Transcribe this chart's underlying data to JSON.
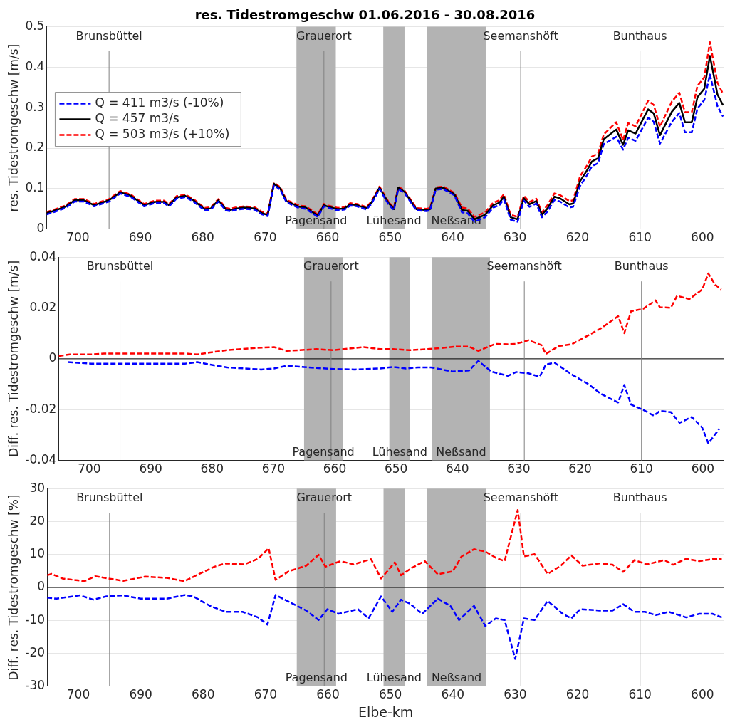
{
  "chart_data": [
    {
      "type": "line",
      "title": "res. Tidestromgeschw 01.06.2016 - 30.08.2016",
      "ylabel": "res. Tidestromgeschw [m/s]",
      "xlim": [
        705,
        596.5
      ],
      "xticks": [
        700,
        690,
        680,
        670,
        660,
        650,
        640,
        630,
        620,
        610,
        600
      ],
      "ylim": [
        0,
        0.5
      ],
      "yticks": [
        0,
        0.1,
        0.2,
        0.3,
        0.4,
        0.5
      ],
      "grid": "y",
      "legend": "top left",
      "x": [
        705,
        703.8,
        702,
        700.5,
        699,
        697.4,
        695,
        693.2,
        691.5,
        689.4,
        687.7,
        686.2,
        685.4,
        684.2,
        682.8,
        681.5,
        679.7,
        678.7,
        677.5,
        676.3,
        675.6,
        674.5,
        673.3,
        671.7,
        670.5,
        669.6,
        668.6,
        667.6,
        666.6,
        664.6,
        663.5,
        661.6,
        660.6,
        659.9,
        658.4,
        657.3,
        656.4,
        655.3,
        653.8,
        653,
        651.7,
        650.3,
        649.4,
        648.7,
        647.7,
        645.8,
        644.2,
        643.6,
        642.7,
        641.5,
        639.7,
        638.5,
        637.6,
        636.5,
        634.8,
        633.5,
        632.5,
        631.8,
        630.7,
        629.6,
        628.6,
        627.7,
        626.6,
        625.7,
        624.8,
        623.7,
        622.8,
        621.3,
        620.7,
        619.6,
        618.4,
        617.7,
        616.7,
        615.8,
        613.8,
        612.7,
        611.9,
        610.7,
        608.7,
        607.8,
        606.8,
        604.9,
        603.7,
        602.8,
        601.7,
        600.8,
        599.7,
        598.8,
        597.6,
        596.7
      ],
      "series": [
        {
          "name": "Q = 411 m3/s (-10%)",
          "color": "#0000ff",
          "line_style": "dashed",
          "values": [
            0.036,
            0.042,
            0.052,
            0.068,
            0.068,
            0.056,
            0.068,
            0.088,
            0.079,
            0.056,
            0.064,
            0.064,
            0.056,
            0.075,
            0.079,
            0.068,
            0.046,
            0.048,
            0.068,
            0.046,
            0.044,
            0.048,
            0.05,
            0.048,
            0.036,
            0.032,
            0.109,
            0.097,
            0.066,
            0.052,
            0.05,
            0.03,
            0.056,
            0.052,
            0.046,
            0.048,
            0.058,
            0.056,
            0.048,
            0.062,
            0.099,
            0.062,
            0.046,
            0.099,
            0.089,
            0.046,
            0.044,
            0.046,
            0.097,
            0.099,
            0.083,
            0.041,
            0.039,
            0.018,
            0.029,
            0.053,
            0.059,
            0.074,
            0.023,
            0.018,
            0.07,
            0.055,
            0.063,
            0.029,
            0.043,
            0.072,
            0.068,
            0.053,
            0.055,
            0.106,
            0.135,
            0.155,
            0.163,
            0.21,
            0.228,
            0.196,
            0.226,
            0.218,
            0.275,
            0.265,
            0.211,
            0.265,
            0.287,
            0.239,
            0.239,
            0.298,
            0.319,
            0.382,
            0.304,
            0.278
          ]
        },
        {
          "name": "Q = 457 m3/s",
          "color": "#000000",
          "line_style": "solid",
          "values": [
            0.039,
            0.045,
            0.055,
            0.071,
            0.071,
            0.059,
            0.071,
            0.091,
            0.082,
            0.059,
            0.067,
            0.067,
            0.059,
            0.078,
            0.082,
            0.071,
            0.049,
            0.051,
            0.071,
            0.049,
            0.047,
            0.051,
            0.053,
            0.051,
            0.039,
            0.035,
            0.112,
            0.1,
            0.069,
            0.055,
            0.053,
            0.033,
            0.059,
            0.055,
            0.049,
            0.051,
            0.061,
            0.059,
            0.051,
            0.065,
            0.102,
            0.065,
            0.049,
            0.102,
            0.092,
            0.049,
            0.047,
            0.049,
            0.1,
            0.102,
            0.086,
            0.047,
            0.045,
            0.024,
            0.035,
            0.059,
            0.065,
            0.08,
            0.029,
            0.024,
            0.076,
            0.061,
            0.069,
            0.035,
            0.051,
            0.08,
            0.076,
            0.061,
            0.063,
            0.118,
            0.147,
            0.167,
            0.175,
            0.222,
            0.246,
            0.208,
            0.244,
            0.236,
            0.296,
            0.286,
            0.232,
            0.29,
            0.312,
            0.264,
            0.264,
            0.326,
            0.347,
            0.428,
            0.333,
            0.306
          ]
        },
        {
          "name": "Q = 503 m3/s (+10%)",
          "color": "#ff0000",
          "line_style": "dashed",
          "values": [
            0.042,
            0.048,
            0.058,
            0.074,
            0.074,
            0.062,
            0.074,
            0.094,
            0.085,
            0.062,
            0.07,
            0.07,
            0.062,
            0.081,
            0.085,
            0.074,
            0.052,
            0.054,
            0.074,
            0.052,
            0.05,
            0.054,
            0.056,
            0.054,
            0.042,
            0.038,
            0.115,
            0.103,
            0.072,
            0.058,
            0.056,
            0.036,
            0.062,
            0.058,
            0.052,
            0.054,
            0.064,
            0.062,
            0.054,
            0.068,
            0.105,
            0.068,
            0.052,
            0.105,
            0.095,
            0.052,
            0.05,
            0.052,
            0.103,
            0.105,
            0.089,
            0.053,
            0.051,
            0.03,
            0.041,
            0.065,
            0.071,
            0.086,
            0.035,
            0.03,
            0.082,
            0.067,
            0.075,
            0.041,
            0.059,
            0.088,
            0.084,
            0.069,
            0.071,
            0.13,
            0.159,
            0.179,
            0.187,
            0.234,
            0.264,
            0.22,
            0.262,
            0.254,
            0.317,
            0.307,
            0.253,
            0.315,
            0.337,
            0.289,
            0.289,
            0.354,
            0.375,
            0.462,
            0.362,
            0.334
          ]
        }
      ],
      "ref_lines": [
        {
          "axis": "x",
          "value": 695,
          "label": "Brunsbüttel",
          "color": "#808080"
        },
        {
          "axis": "x",
          "value": 660.6,
          "label": "Grauerort",
          "color": "#808080"
        },
        {
          "axis": "x",
          "value": 629.1,
          "label": "Seemanshöft",
          "color": "#808080"
        },
        {
          "axis": "x",
          "value": 610,
          "label": "Bunthaus",
          "color": "#808080"
        }
      ],
      "bands": [
        {
          "axis": "x",
          "from": 665,
          "to": 658.7,
          "label": "Pagensand",
          "color": "#b3b3b3"
        },
        {
          "axis": "x",
          "from": 651.1,
          "to": 647.7,
          "label": "Lühesand",
          "color": "#b3b3b3"
        },
        {
          "axis": "x",
          "from": 644.1,
          "to": 634.7,
          "label": "Neßsand",
          "color": "#b3b3b3"
        }
      ]
    },
    {
      "type": "line",
      "ylabel": "Diff. res. Tidestromgeschw [m/s]",
      "xlim": [
        705,
        596.5
      ],
      "xticks": [
        700,
        690,
        680,
        670,
        660,
        650,
        640,
        630,
        620,
        610,
        600
      ],
      "ylim": [
        -0.04,
        0.04
      ],
      "yticks": [
        -0.04,
        -0.02,
        0,
        0.02,
        0.04
      ],
      "grid": "y",
      "series": [
        {
          "color": "#0000ff",
          "line_style": "dashed",
          "x": [
            703.5,
            699.7,
            694.8,
            684.4,
            682.4,
            680.3,
            677.5,
            672,
            669.9,
            667.8,
            663,
            660.2,
            656.7,
            652.6,
            650.5,
            648.4,
            646.4,
            644.3,
            640.8,
            638.1,
            636.6,
            634.5,
            631.8,
            630.4,
            628.4,
            626.6,
            625.6,
            624.2,
            621.4,
            618.7,
            616.6,
            613.8,
            612.8,
            611.7,
            609.7,
            608,
            607,
            605.2,
            603.8,
            601.8,
            600.1,
            599.1,
            597.3
          ],
          "values": [
            -0.0013,
            -0.0019,
            -0.0019,
            -0.0019,
            -0.0013,
            -0.0023,
            -0.0034,
            -0.0042,
            -0.0038,
            -0.0027,
            -0.0036,
            -0.004,
            -0.0042,
            -0.0038,
            -0.0032,
            -0.0038,
            -0.0034,
            -0.0034,
            -0.005,
            -0.0046,
            -0.0008,
            -0.005,
            -0.0067,
            -0.0052,
            -0.0057,
            -0.0071,
            -0.0023,
            -0.0015,
            -0.0061,
            -0.0099,
            -0.0138,
            -0.0172,
            -0.0103,
            -0.018,
            -0.0201,
            -0.0224,
            -0.0205,
            -0.021,
            -0.0252,
            -0.0229,
            -0.0271,
            -0.0333,
            -0.0275
          ]
        },
        {
          "color": "#ff0000",
          "line_style": "dashed",
          "x": [
            705,
            703.2,
            699.7,
            697.6,
            692.8,
            684.4,
            682.4,
            680.3,
            677.5,
            673.4,
            669.9,
            667.8,
            663,
            660.2,
            655.3,
            652.6,
            650.5,
            647.8,
            645,
            642.9,
            640.2,
            638.1,
            636.6,
            633.8,
            631.8,
            630.4,
            628.4,
            626.3,
            625.6,
            623.5,
            621.4,
            618.7,
            616.6,
            613.8,
            612.8,
            611.7,
            609.7,
            607.7,
            607,
            605.2,
            604.2,
            602.2,
            600.1,
            599.1,
            598,
            597
          ],
          "values": [
            0.0011,
            0.0017,
            0.0017,
            0.0021,
            0.0021,
            0.0021,
            0.0017,
            0.0025,
            0.0034,
            0.0042,
            0.0046,
            0.0031,
            0.0038,
            0.0034,
            0.0046,
            0.0038,
            0.0038,
            0.0034,
            0.0038,
            0.0042,
            0.0048,
            0.0048,
            0.0031,
            0.0059,
            0.0057,
            0.0059,
            0.0073,
            0.0054,
            0.0019,
            0.005,
            0.0057,
            0.0092,
            0.012,
            0.0168,
            0.0101,
            0.0187,
            0.0197,
            0.023,
            0.0203,
            0.0201,
            0.0248,
            0.0235,
            0.0273,
            0.0336,
            0.0292,
            0.0273
          ]
        }
      ],
      "ref_lines": [
        {
          "axis": "y",
          "value": 0,
          "label": null,
          "color": "#000000"
        },
        {
          "axis": "x",
          "value": 695,
          "label": "Brunsbüttel",
          "color": "#808080"
        },
        {
          "axis": "x",
          "value": 660.6,
          "label": "Grauerort",
          "color": "#808080"
        },
        {
          "axis": "x",
          "value": 629.1,
          "label": "Seemanshöft",
          "color": "#808080"
        },
        {
          "axis": "x",
          "value": 610,
          "label": "Bunthaus",
          "color": "#808080"
        }
      ],
      "bands": [
        {
          "axis": "x",
          "from": 665,
          "to": 658.7,
          "label": "Pagensand",
          "color": "#b3b3b3"
        },
        {
          "axis": "x",
          "from": 651.1,
          "to": 647.7,
          "label": "Lühesand",
          "color": "#b3b3b3"
        },
        {
          "axis": "x",
          "from": 644.1,
          "to": 634.7,
          "label": "Neßsand",
          "color": "#b3b3b3"
        }
      ]
    },
    {
      "type": "line",
      "xlabel": "Elbe-km",
      "ylabel": "Diff. res. Tidestromgeschw [%]",
      "xlim": [
        705,
        596.5
      ],
      "xticks": [
        700,
        690,
        680,
        670,
        660,
        650,
        640,
        630,
        620,
        610,
        600
      ],
      "ylim": [
        -30,
        30
      ],
      "yticks": [
        -30,
        -20,
        -10,
        0,
        10,
        20,
        30
      ],
      "grid": "y",
      "series": [
        {
          "color": "#0000ff",
          "line_style": "dashed",
          "x": [
            705,
            703.5,
            699.7,
            697.6,
            695.5,
            692.8,
            690,
            685.8,
            683,
            681.6,
            678.9,
            676.4,
            673.7,
            671.2,
            669.7,
            668.4,
            665.7,
            663.5,
            661.5,
            660.1,
            658.3,
            655.2,
            653.5,
            651.5,
            649.7,
            648.3,
            646.9,
            644.9,
            642.4,
            640.4,
            639,
            636.6,
            634.8,
            633.1,
            631.7,
            630,
            628.6,
            626.9,
            624.8,
            622.4,
            621,
            619.6,
            616.5,
            614.4,
            612.7,
            610.9,
            609.2,
            607.5,
            605.4,
            602.6,
            600.5,
            598.4,
            596.9
          ],
          "values": [
            -3.1,
            -3.4,
            -2.4,
            -3.7,
            -2.7,
            -2.4,
            -3.4,
            -3.4,
            -2.3,
            -2.7,
            -5.6,
            -7.4,
            -7.4,
            -9.1,
            -11.3,
            -2.3,
            -4.9,
            -7,
            -9.9,
            -6.6,
            -8,
            -6.6,
            -9.4,
            -2.7,
            -7.4,
            -3.7,
            -4.9,
            -8,
            -3.4,
            -5.6,
            -9.9,
            -5.6,
            -11.7,
            -9.4,
            -9.9,
            -21.7,
            -9.4,
            -9.9,
            -4.1,
            -8,
            -9.4,
            -6.6,
            -7,
            -7,
            -5.1,
            -7.4,
            -7.4,
            -8.4,
            -7.4,
            -9.1,
            -8,
            -8,
            -9.1
          ]
        },
        {
          "color": "#ff0000",
          "line_style": "dashed",
          "x": [
            705,
            704.3,
            702.5,
            699,
            697.3,
            694.8,
            692.8,
            689.3,
            685.8,
            683,
            680.3,
            678.2,
            676.4,
            673.4,
            671.2,
            669.5,
            668.4,
            666.3,
            663.5,
            661.5,
            660.4,
            658,
            655.9,
            653.1,
            651.5,
            649.3,
            648.3,
            646.6,
            644.5,
            642.4,
            640,
            638.6,
            636.6,
            634.8,
            633.1,
            631.7,
            629.6,
            628.6,
            626.9,
            624.8,
            622.7,
            621,
            619.2,
            616.5,
            614.4,
            612.7,
            610.9,
            608.9,
            606.1,
            604.7,
            602.6,
            600.5,
            598.4,
            596.9
          ],
          "values": [
            3.7,
            4.1,
            2.7,
            1.9,
            3.4,
            2.6,
            2,
            3.3,
            2.9,
            1.9,
            4.4,
            6.3,
            7.3,
            7,
            8.7,
            11.9,
            2.3,
            4.9,
            6.6,
            9.9,
            6.3,
            8,
            7,
            8.6,
            2.7,
            7.6,
            3.7,
            5.9,
            8,
            4,
            4.9,
            9.4,
            11.6,
            10.9,
            9,
            8,
            23.5,
            9.4,
            10.1,
            4.1,
            6.6,
            9.7,
            6.6,
            7.3,
            6.9,
            4.7,
            8.3,
            7,
            8.3,
            6.9,
            8.7,
            8,
            8.6,
            8.7
          ]
        }
      ],
      "ref_lines": [
        {
          "axis": "y",
          "value": 0,
          "label": null,
          "color": "#000000"
        },
        {
          "axis": "x",
          "value": 695,
          "label": "Brunsbüttel",
          "color": "#808080"
        },
        {
          "axis": "x",
          "value": 660.6,
          "label": "Grauerort",
          "color": "#808080"
        },
        {
          "axis": "x",
          "value": 629.1,
          "label": "Seemanshöft",
          "color": "#808080"
        },
        {
          "axis": "x",
          "value": 610,
          "label": "Bunthaus",
          "color": "#808080"
        }
      ],
      "bands": [
        {
          "axis": "x",
          "from": 665,
          "to": 658.7,
          "label": "Pagensand",
          "color": "#b3b3b3"
        },
        {
          "axis": "x",
          "from": 651.1,
          "to": 647.7,
          "label": "Lühesand",
          "color": "#b3b3b3"
        },
        {
          "axis": "x",
          "from": 644.1,
          "to": 634.7,
          "label": "Neßsand",
          "color": "#b3b3b3"
        }
      ]
    }
  ]
}
